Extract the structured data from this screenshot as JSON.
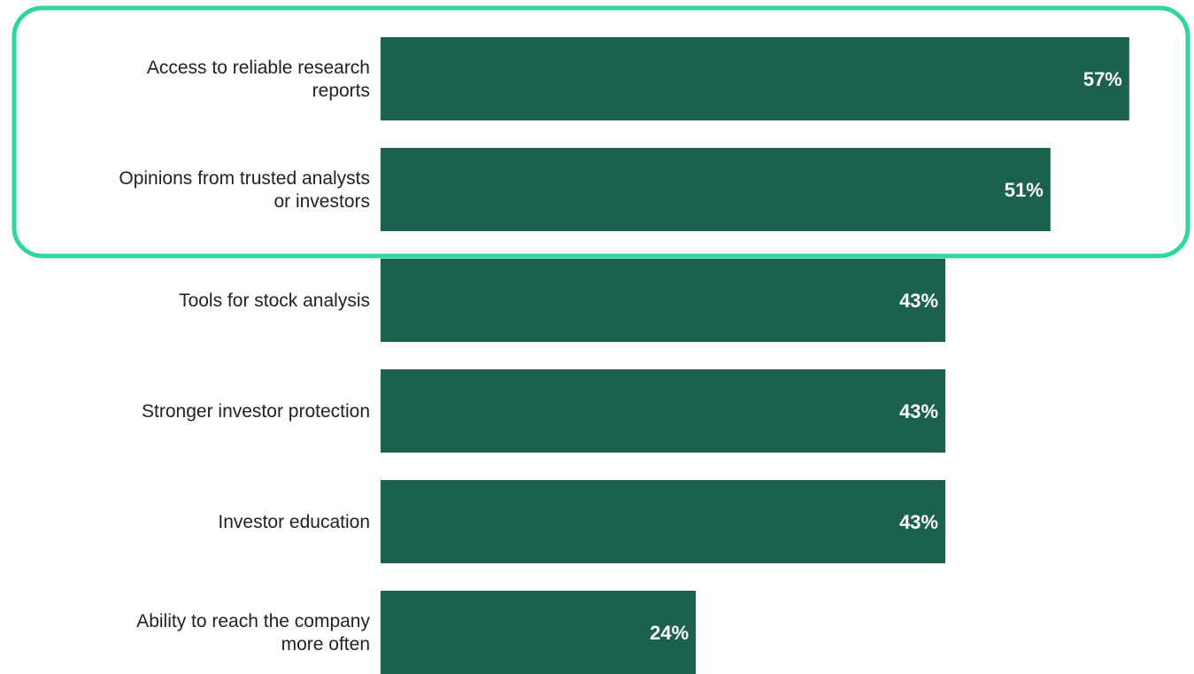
{
  "chart_data": {
    "type": "bar",
    "orientation": "horizontal",
    "categories": [
      "Access to reliable research\nreports",
      "Opinions from trusted analysts\nor investors",
      "Tools for stock analysis",
      "Stronger investor protection",
      "Investor education",
      "Ability to reach the company\nmore often"
    ],
    "values": [
      57,
      51,
      43,
      43,
      43,
      24
    ],
    "value_labels": [
      "57%",
      "51%",
      "43%",
      "43%",
      "43%",
      "24%"
    ],
    "color": "#1c6150"
  }
}
